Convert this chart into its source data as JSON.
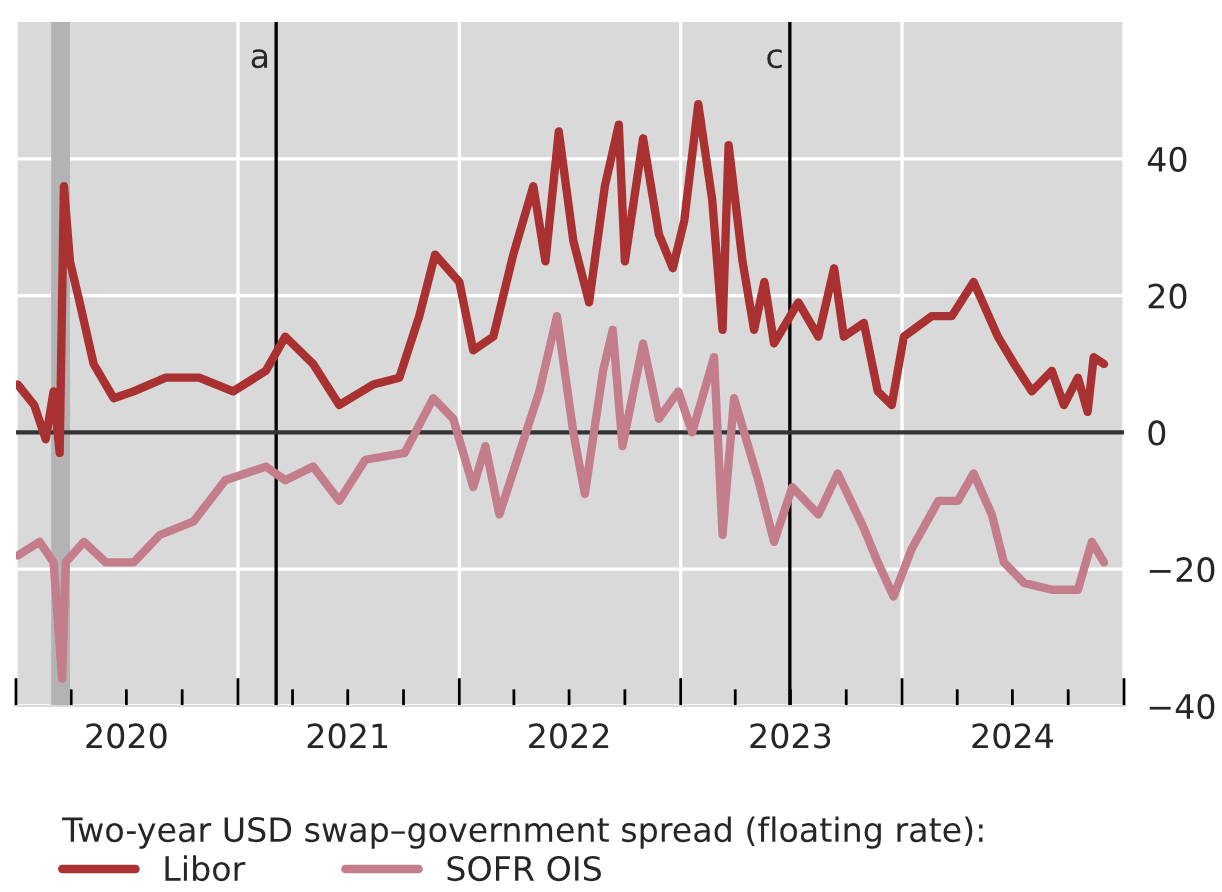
{
  "chart_data": {
    "type": "line",
    "legend_title": "Two-year USD swap–government spread (floating rate):",
    "series": [
      {
        "name": "Libor",
        "color": "#a93131",
        "x": [
          "2020-01-04",
          "2020-01-31",
          "2020-02-19",
          "2020-03-03",
          "2020-03-13",
          "2020-03-20",
          "2020-03-30",
          "2020-04-15",
          "2020-05-08",
          "2020-06-10",
          "2020-07-13",
          "2020-09-04",
          "2020-10-29",
          "2020-12-24",
          "2021-02-16",
          "2021-03-20",
          "2021-05-05",
          "2021-06-17",
          "2021-08-12",
          "2021-09-24",
          "2021-10-27",
          "2021-11-22",
          "2022-01-01",
          "2022-01-24",
          "2022-02-26",
          "2022-03-31",
          "2022-05-03",
          "2022-05-23",
          "2022-06-14",
          "2022-07-08",
          "2022-08-03",
          "2022-08-29",
          "2022-09-21",
          "2022-10-01",
          "2022-10-31",
          "2022-11-26",
          "2022-12-19",
          "2023-01-07",
          "2023-01-30",
          "2023-02-22",
          "2023-03-11",
          "2023-03-21",
          "2023-04-13",
          "2023-05-02",
          "2023-05-19",
          "2023-06-04",
          "2023-07-14",
          "2023-08-16",
          "2023-09-11",
          "2023-09-27",
          "2023-10-30",
          "2023-11-22",
          "2023-12-15",
          "2024-01-04",
          "2024-02-19",
          "2024-03-23",
          "2024-04-28",
          "2024-06-07",
          "2024-07-04",
          "2024-08-02",
          "2024-09-04",
          "2024-09-24",
          "2024-10-17",
          "2024-11-02",
          "2024-11-12",
          "2024-11-29"
        ],
        "values": [
          7,
          4,
          -1,
          6,
          -3,
          36,
          25,
          19,
          10,
          5,
          6,
          8,
          8,
          6,
          9,
          14,
          10,
          4,
          7,
          8,
          17,
          26,
          22,
          12,
          14,
          26,
          36,
          25,
          44,
          28,
          19,
          36,
          45,
          25,
          43,
          29,
          24,
          31,
          48,
          34,
          15,
          42,
          25,
          15,
          22,
          13,
          19,
          14,
          24,
          14,
          16,
          6,
          4,
          14,
          17,
          17,
          22,
          14,
          10,
          6,
          9,
          4,
          8,
          3,
          11,
          10
        ]
      },
      {
        "name": "SOFR OIS",
        "color": "#c47d8c",
        "x": [
          "2020-01-04",
          "2020-02-09",
          "2020-03-03",
          "2020-03-17",
          "2020-03-23",
          "2020-04-22",
          "2020-05-28",
          "2020-07-13",
          "2020-08-25",
          "2020-10-20",
          "2020-12-11",
          "2021-02-16",
          "2021-03-20",
          "2021-05-05",
          "2021-06-17",
          "2021-07-30",
          "2021-10-03",
          "2021-11-19",
          "2021-12-22",
          "2022-01-24",
          "2022-02-13",
          "2022-03-08",
          "2022-04-10",
          "2022-05-13",
          "2022-06-11",
          "2022-07-08",
          "2022-07-27",
          "2022-08-26",
          "2022-09-11",
          "2022-09-27",
          "2022-10-31",
          "2022-11-26",
          "2022-12-28",
          "2023-01-20",
          "2023-02-25",
          "2023-03-11",
          "2023-03-30",
          "2023-05-09",
          "2023-06-04",
          "2023-07-04",
          "2023-08-16",
          "2023-09-17",
          "2023-10-30",
          "2023-11-22",
          "2023-12-18",
          "2024-01-17",
          "2024-03-01",
          "2024-04-02",
          "2024-04-28",
          "2024-05-28",
          "2024-06-17",
          "2024-07-20",
          "2024-09-04",
          "2024-10-17",
          "2024-11-09",
          "2024-11-29"
        ],
        "values": [
          -18,
          -16,
          -19,
          -36,
          -19,
          -16,
          -19,
          -19,
          -15,
          -13,
          -7,
          -5,
          -7,
          -5,
          -10,
          -4,
          -3,
          5,
          2,
          -8,
          -2,
          -12,
          -3,
          6,
          17,
          0,
          -9,
          9,
          15,
          -2,
          13,
          2,
          6,
          0,
          11,
          -15,
          5,
          -7,
          -16,
          -8,
          -12,
          -6,
          -14,
          -19,
          -24,
          -17,
          -10,
          -10,
          -6,
          -12,
          -19,
          -22,
          -23,
          -23,
          -16,
          -19
        ]
      }
    ],
    "xlim": [
      "2020-01-01",
      "2025-01-01"
    ],
    "xticks": [
      {
        "value": "2020-01-01",
        "label": null
      },
      {
        "value": "2020-04-01",
        "label": null
      },
      {
        "value": "2020-07-01",
        "label": "2020"
      },
      {
        "value": "2020-10-01",
        "label": null
      },
      {
        "value": "2021-01-01",
        "label": null
      },
      {
        "value": "2021-04-01",
        "label": null
      },
      {
        "value": "2021-07-01",
        "label": "2021"
      },
      {
        "value": "2021-10-01",
        "label": null
      },
      {
        "value": "2022-01-01",
        "label": null
      },
      {
        "value": "2022-04-01",
        "label": null
      },
      {
        "value": "2022-07-01",
        "label": "2022"
      },
      {
        "value": "2022-10-01",
        "label": null
      },
      {
        "value": "2023-01-01",
        "label": null
      },
      {
        "value": "2023-04-01",
        "label": null
      },
      {
        "value": "2023-07-01",
        "label": "2023"
      },
      {
        "value": "2023-10-01",
        "label": null
      },
      {
        "value": "2024-01-01",
        "label": null
      },
      {
        "value": "2024-04-01",
        "label": null
      },
      {
        "value": "2024-07-01",
        "label": "2024"
      },
      {
        "value": "2024-10-01",
        "label": null
      },
      {
        "value": "2025-01-01",
        "label": null
      }
    ],
    "ylim": [
      -40,
      60
    ],
    "yticks": [
      {
        "value": -40,
        "label": "−40"
      },
      {
        "value": -20,
        "label": "−20"
      },
      0,
      20,
      40
    ],
    "ref_lines": [
      {
        "axis": "x",
        "value": "2021-03-05",
        "label": "a",
        "color": "#000000"
      },
      {
        "axis": "x",
        "value": "2023-06-30",
        "label": "c",
        "color": "#000000"
      },
      {
        "axis": "y",
        "value": 0,
        "label": null,
        "color": "#333333"
      }
    ],
    "bands": [
      {
        "axis": "x",
        "from": "2020-02-28",
        "to": "2020-03-30",
        "label": null,
        "color": "#b3b3b3"
      }
    ],
    "grid": true,
    "legend": "bottom",
    "line_style": "solid",
    "marker": "none"
  }
}
